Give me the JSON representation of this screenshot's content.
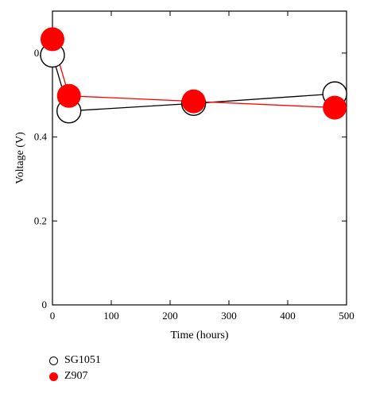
{
  "chart_data": {
    "type": "line",
    "title": "",
    "xlabel": "Time (hours)",
    "ylabel": "Voltage (V)",
    "xlim": [
      0,
      500
    ],
    "ylim": [
      0,
      0.7
    ],
    "x_ticks": [
      0,
      100,
      200,
      300,
      400,
      500
    ],
    "y_ticks": [
      0,
      0.2,
      0.4,
      0.6
    ],
    "y_tick_labels": [
      "0",
      "0.2",
      "0.4",
      "0.6"
    ],
    "grid": false,
    "legend_position": "bottom-left",
    "series": [
      {
        "name": "SG1051",
        "marker": "open-circle",
        "line_color": "#000000",
        "marker_fill": "#ffffff",
        "x": [
          0,
          28,
          240,
          480
        ],
        "y": [
          0.595,
          0.462,
          0.48,
          0.503
        ]
      },
      {
        "name": "Z907",
        "marker": "filled-circle",
        "line_color": "#ff0000",
        "marker_fill": "#ff0000",
        "x": [
          0,
          28,
          240,
          480
        ],
        "y": [
          0.633,
          0.498,
          0.485,
          0.47
        ]
      }
    ]
  }
}
